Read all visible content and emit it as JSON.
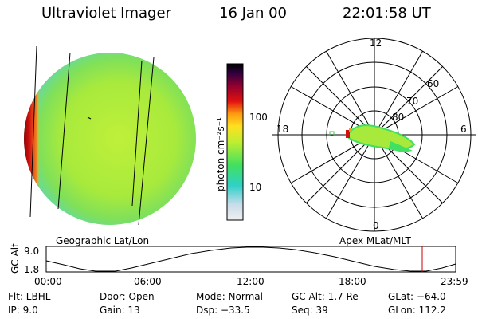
{
  "header": {
    "instrument": "Ultraviolet Imager",
    "date": "16 Jan 00",
    "time": "22:01:58 UT"
  },
  "colorbar": {
    "unit_label": "photon cm⁻²s⁻¹",
    "ticks": [
      "100",
      "10"
    ]
  },
  "polar_plot": {
    "mlt_labels": [
      "12",
      "18",
      "6",
      "0"
    ],
    "lat_labels": [
      "60",
      "70",
      "80"
    ]
  },
  "panel_labels": {
    "geographic": "Geographic Lat/Lon",
    "apex": "Apex MLat/MLT"
  },
  "altitude_plot": {
    "ylabel": "GC Alt",
    "yticks": [
      "9.0",
      "1.8"
    ],
    "xticks": [
      "00:00",
      "06:00",
      "12:00",
      "18:00",
      "23:59"
    ],
    "current_marker_color": "#cc0000"
  },
  "info": {
    "filter": "Flt: LBHL",
    "ip": "IP:  9.0",
    "door": "Door: Open",
    "gain": "Gain: 13",
    "mode": "Mode: Normal",
    "dsp": "Dsp:  −33.5",
    "gc_alt": "GC Alt: 1.7 Re",
    "seq": "Seq: 39",
    "glat": "GLat: −64.0",
    "glon": "GLon: 112.2"
  }
}
